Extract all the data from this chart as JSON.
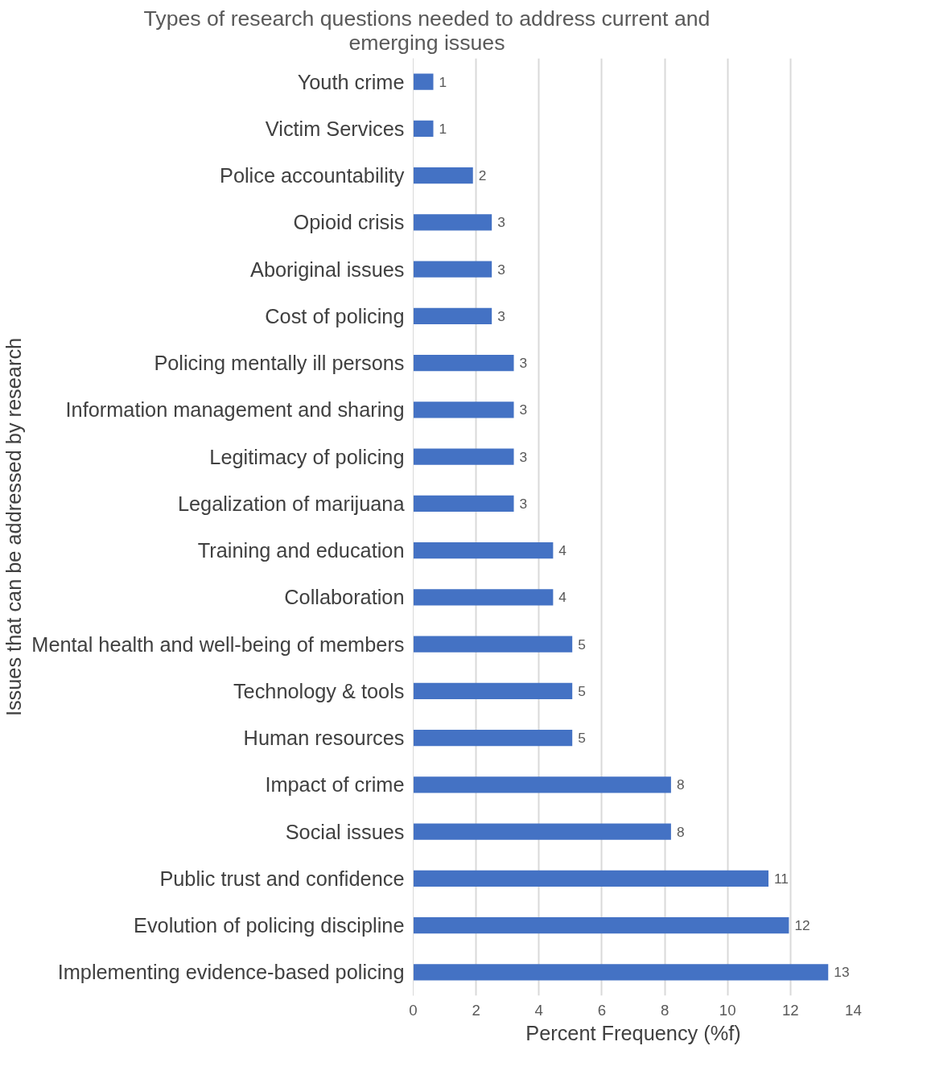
{
  "chart_data": {
    "type": "bar",
    "orientation": "horizontal",
    "title": "Types of research questions needed to address current and emerging issues",
    "xlabel": "Percent Frequency (%f)",
    "ylabel": "Issues that can be addressed by research",
    "categories": [
      "Youth crime",
      "Victim Services",
      "Police accountability",
      "Opioid crisis",
      "Aboriginal issues",
      "Cost of policing",
      "Policing mentally ill persons",
      "Information management and sharing",
      "Legitimacy of policing",
      "Legalization of marijuana",
      "Training and education",
      "Collaboration",
      "Mental health and well-being of members",
      "Technology & tools",
      "Human resources",
      "Impact of crime",
      "Social issues",
      "Public trust and confidence",
      "Evolution of policing discipline",
      "Implementing evidence-based policing"
    ],
    "values": [
      0.64,
      0.64,
      1.9,
      2.5,
      2.5,
      2.5,
      3.2,
      3.2,
      3.2,
      3.2,
      4.45,
      4.45,
      5.06,
      5.06,
      5.06,
      8.2,
      8.2,
      11.3,
      11.95,
      13.2
    ],
    "value_labels": [
      "1",
      "1",
      "2",
      "3",
      "3",
      "3",
      "3",
      "3",
      "3",
      "3",
      "4",
      "4",
      "5",
      "5",
      "5",
      "8",
      "8",
      "11",
      "12",
      "13"
    ],
    "color": "#4472c4",
    "xlim": [
      0,
      14
    ],
    "xticks": [
      0,
      2,
      4,
      6,
      8,
      10,
      12,
      14
    ],
    "grid": "x"
  }
}
